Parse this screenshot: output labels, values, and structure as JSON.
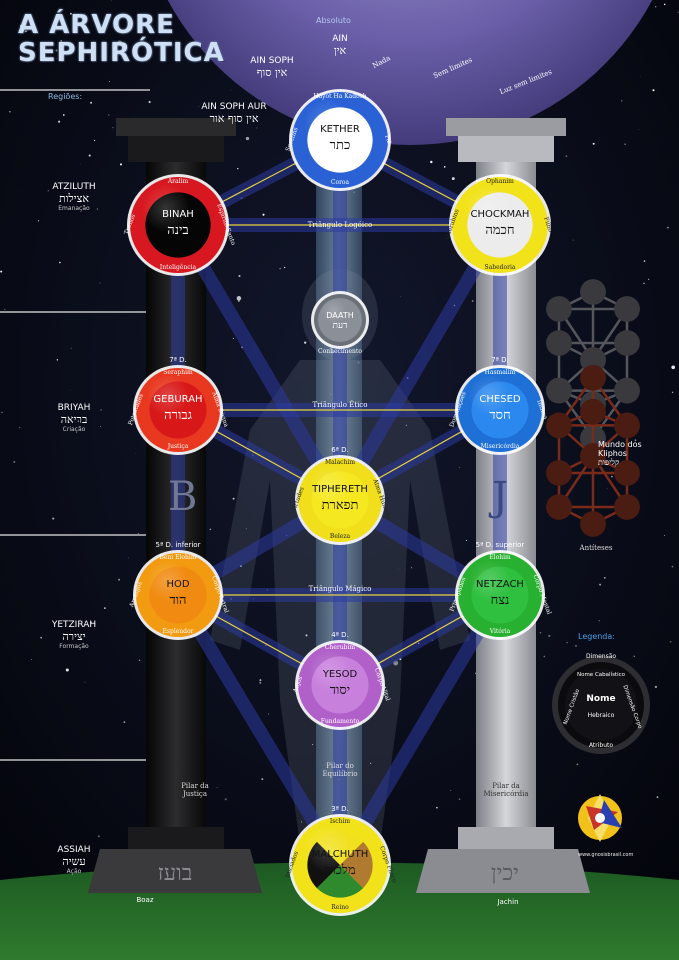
{
  "title": {
    "line1": "A ÁRVORE",
    "line2": "SEPHIRÓTICA"
  },
  "regions_label": "Regiões:",
  "worlds": [
    {
      "name": "ATZILUTH",
      "hebrew": "אצילות",
      "sub": "Emanação"
    },
    {
      "name": "BRIYAH",
      "hebrew": "בריאה",
      "sub": "Criação"
    },
    {
      "name": "YETZIRAH",
      "hebrew": "יצירה",
      "sub": "Formação"
    },
    {
      "name": "ASSIAH",
      "hebrew": "עשיה",
      "sub": "Ação"
    }
  ],
  "veils": {
    "absoluto": "Absoluto",
    "ain": "AIN",
    "ain_heb": "אין",
    "ain_soph": "AIN SOPH",
    "ain_soph_heb": "אין סוף",
    "ain_soph_aur": "AIN SOPH AUR",
    "ain_soph_aur_heb": "אין סוף אור",
    "nada": "Nada",
    "sem_limites": "Sem limites",
    "luz": "Luz sem limites"
  },
  "sephiroth": [
    {
      "name": "KETHER",
      "heb": "כתר",
      "top": "Hayot Ha Kadosh",
      "bottom": "Coroa",
      "left": "Serafins",
      "right": "Pai",
      "dim": "",
      "ring": "#2a62d6",
      "core": "#ffffff",
      "text": "#111111"
    },
    {
      "name": "BINAH",
      "heb": "בינה",
      "top": "Aralim",
      "bottom": "Inteligência",
      "left": "Tronos",
      "right": "Espírito Santo",
      "dim": "",
      "ring": "#d81820",
      "core": "#050505",
      "text": "#ffffff"
    },
    {
      "name": "CHOCKMAH",
      "heb": "חכמה",
      "top": "Ophanim",
      "bottom": "Sabedoria",
      "left": "Querubins",
      "right": "Filho",
      "dim": "",
      "ring": "#f2e21a",
      "core": "#ececec",
      "text": "#111111"
    },
    {
      "name": "DAATH",
      "heb": "דעת",
      "top": "",
      "bottom": "Conhecimento",
      "left": "",
      "right": "",
      "dim": "",
      "ring": "#6a6f78",
      "core": "#8a8f98",
      "text": "#ffffff"
    },
    {
      "name": "GEBURAH",
      "heb": "גבורה",
      "top": "Seraphim",
      "bottom": "Justiça",
      "left": "Potestades",
      "right": "Alma Divina",
      "dim": "7ª D.",
      "ring": "#e83820",
      "core": "#d81818",
      "text": "#ffffff"
    },
    {
      "name": "CHESED",
      "heb": "חסד",
      "top": "Hasmalim",
      "bottom": "Misericórdia",
      "left": "Dominações",
      "right": "Íntimo",
      "dim": "7ª D.",
      "ring": "#1e6fd6",
      "core": "#2a88ee",
      "text": "#ffffff"
    },
    {
      "name": "TIPHERETH",
      "heb": "תפארת",
      "top": "Malachim",
      "bottom": "Beleza",
      "left": "Virtudes",
      "right": "Alma Humana",
      "dim": "6ª D.",
      "ring": "#f0df1a",
      "core": "#f5e820",
      "text": "#111111"
    },
    {
      "name": "HOD",
      "heb": "הוד",
      "top": "Beni Elohim",
      "bottom": "Esplendor",
      "left": "Arcanjos",
      "right": "Corpo Astral",
      "dim": "5ª D. inferior",
      "ring": "#f29a10",
      "core": "#f08a10",
      "text": "#111111"
    },
    {
      "name": "NETZACH",
      "heb": "נצח",
      "top": "Elohim",
      "bottom": "Vitória",
      "left": "Principados",
      "right": "Corpo Mental",
      "dim": "5ª D. superior",
      "ring": "#28b030",
      "core": "#30c040",
      "text": "#111111"
    },
    {
      "name": "YESOD",
      "heb": "יסוד",
      "top": "Cherubim",
      "bottom": "Fundamento",
      "left": "Anjos",
      "right": "Corpo Vital",
      "dim": "4ª D.",
      "ring": "#b060c8",
      "core": "#c880dd",
      "text": "#111111"
    },
    {
      "name": "MALCHUTH",
      "heb": "מלכות",
      "top": "Ischim",
      "bottom": "Reino",
      "left": "Iniciados",
      "right": "Corpo Físico",
      "dim": "3ª D.",
      "ring": "#f2e21a",
      "core": "#b07a30",
      "text": "#111111"
    }
  ],
  "triangles": {
    "logoico": "Triângulo Logóico",
    "etico": "Triângulo Ético",
    "magico": "Triângulo Mágico"
  },
  "pillars": {
    "left_letter": "B",
    "right_letter": "J",
    "justica": "Pilar da Justiça",
    "equilibrio": "Pilar do Equilíbrio",
    "misericordia": "Pilar da Misericórdia",
    "boaz": "Boaz",
    "jachin": "Jachin",
    "boaz_heb": "בועז",
    "jachin_heb": "יכין"
  },
  "kliphos": {
    "label": "Mundo dos Kliphos",
    "heb": "קליפות",
    "antiteses": "Antíteses"
  },
  "legend": {
    "title": "Legenda:",
    "dimensao": "Dimensão",
    "nome_cabalistico": "Nome Cabalístico",
    "nome": "Nome",
    "hebraico": "Hebraico",
    "nome_cristao": "Nome Cristão",
    "dimensao_corpo": "Dimensão Corpo",
    "atributo": "Atributo"
  },
  "site": "www.gnosisbrasil.com"
}
